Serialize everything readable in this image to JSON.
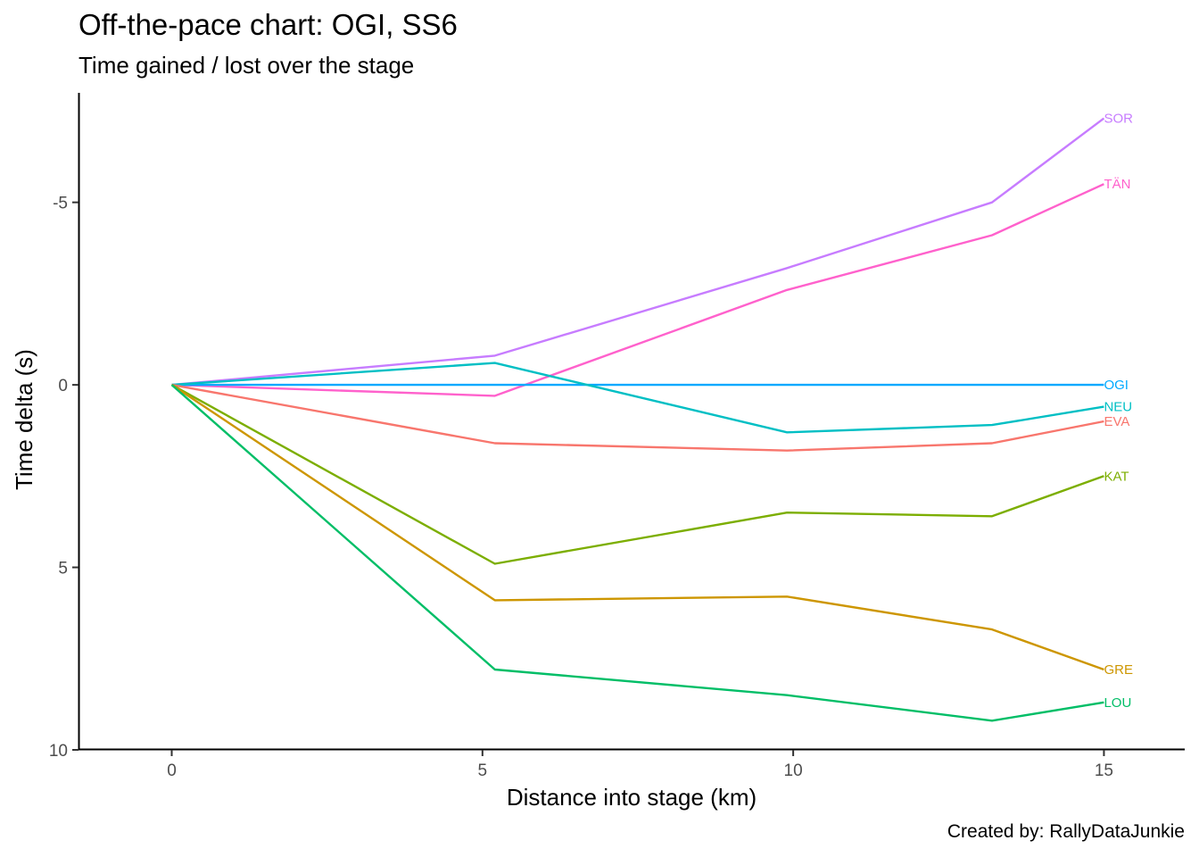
{
  "title": "Off-the-pace chart: OGI, SS6",
  "subtitle": "Time gained / lost over the stage",
  "caption": "Created by: RallyDataJunkie",
  "chart_data": {
    "type": "line",
    "xlabel": "Distance into stage (km)",
    "ylabel": "Time delta (s)",
    "xlim": [
      -1.5,
      16.3
    ],
    "ylim": [
      10,
      -8
    ],
    "y_reversed": true,
    "x_ticks": [
      0,
      5,
      10,
      15
    ],
    "y_ticks": [
      -5,
      0,
      5,
      10
    ],
    "x_tick_labels": [
      "0",
      "5",
      "10",
      "15"
    ],
    "y_tick_labels": [
      "-5",
      "0",
      "5",
      "10"
    ],
    "grid": false,
    "legend": "none (direct labels at line ends)",
    "x": [
      0,
      5.2,
      9.9,
      13.2,
      15.0
    ],
    "series": [
      {
        "name": "SOR",
        "color": "#c77cff",
        "values": [
          0,
          -0.8,
          -3.2,
          -5.0,
          -7.3
        ]
      },
      {
        "name": "TÄN",
        "color": "#ff61cc",
        "values": [
          0,
          0.3,
          -2.6,
          -4.1,
          -5.5
        ]
      },
      {
        "name": "OGI",
        "color": "#00a9ff",
        "values": [
          0,
          0,
          0,
          0,
          0
        ]
      },
      {
        "name": "NEU",
        "color": "#00bfc4",
        "values": [
          0,
          -0.6,
          1.3,
          1.1,
          0.6
        ]
      },
      {
        "name": "EVA",
        "color": "#f8766d",
        "values": [
          0,
          1.6,
          1.8,
          1.6,
          1.0
        ]
      },
      {
        "name": "KAT",
        "color": "#7cae00",
        "values": [
          0,
          4.9,
          3.5,
          3.6,
          2.5
        ]
      },
      {
        "name": "GRE",
        "color": "#cd9600",
        "values": [
          0,
          5.9,
          5.8,
          6.7,
          7.8
        ]
      },
      {
        "name": "LOU",
        "color": "#00be67",
        "values": [
          0,
          7.8,
          8.5,
          9.2,
          8.7
        ]
      }
    ]
  }
}
